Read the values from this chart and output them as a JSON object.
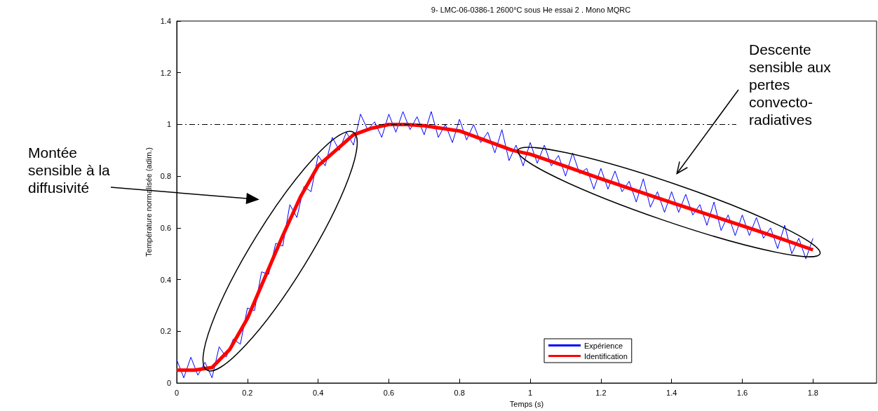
{
  "chart_data": {
    "type": "line",
    "title": "9- LMC-06-0386-1 2600°C sous He essai 2 . Mono MQRC",
    "xlabel": "Temps (s)",
    "ylabel": "Température normalisée (adim.)",
    "xlim": [
      0,
      1.98
    ],
    "xticks": [
      0,
      0.2,
      0.4,
      0.6,
      0.8,
      1,
      1.2,
      1.4,
      1.6,
      1.8
    ],
    "ylim": [
      0,
      1.4
    ],
    "yticks": [
      0,
      0.2,
      0.4,
      0.6,
      0.8,
      1,
      1.2,
      1.4
    ],
    "grid": false,
    "legend": "bottom right",
    "marker": "none",
    "ref_lines": [
      {
        "axis": "y",
        "value": 1,
        "color": "#000000",
        "line_style": "dashed"
      }
    ],
    "annotations": [
      "Montée sensible à la diffusivité",
      "Descente sensible aux pertes convecto-radiatives"
    ],
    "series": [
      {
        "name": "Expérience",
        "color": "#0000ff",
        "x": [
          0,
          0.02,
          0.04,
          0.06,
          0.08,
          0.1,
          0.12,
          0.14,
          0.16,
          0.18,
          0.2,
          0.22,
          0.24,
          0.26,
          0.28,
          0.3,
          0.32,
          0.34,
          0.36,
          0.38,
          0.4,
          0.42,
          0.44,
          0.46,
          0.48,
          0.5,
          0.52,
          0.54,
          0.56,
          0.58,
          0.6,
          0.62,
          0.64,
          0.66,
          0.68,
          0.7,
          0.72,
          0.74,
          0.76,
          0.78,
          0.8,
          0.82,
          0.84,
          0.86,
          0.88,
          0.9,
          0.92,
          0.94,
          0.96,
          0.98,
          1,
          1.02,
          1.04,
          1.06,
          1.08,
          1.1,
          1.12,
          1.14,
          1.16,
          1.18,
          1.2,
          1.22,
          1.24,
          1.26,
          1.28,
          1.3,
          1.32,
          1.34,
          1.36,
          1.38,
          1.4,
          1.42,
          1.44,
          1.46,
          1.48,
          1.5,
          1.52,
          1.54,
          1.56,
          1.58,
          1.6,
          1.62,
          1.64,
          1.66,
          1.68,
          1.7,
          1.72,
          1.74,
          1.76,
          1.78,
          1.8
        ],
        "values": [
          0.09,
          0.02,
          0.1,
          0.03,
          0.08,
          0.02,
          0.14,
          0.1,
          0.17,
          0.15,
          0.29,
          0.28,
          0.43,
          0.42,
          0.54,
          0.53,
          0.69,
          0.64,
          0.76,
          0.74,
          0.88,
          0.84,
          0.95,
          0.9,
          0.97,
          0.92,
          1.04,
          0.98,
          1.01,
          0.95,
          1.04,
          0.97,
          1.05,
          0.98,
          1.03,
          0.96,
          1.05,
          0.95,
          1.0,
          0.93,
          1.02,
          0.94,
          1.0,
          0.93,
          0.97,
          0.89,
          0.98,
          0.86,
          0.92,
          0.84,
          0.93,
          0.85,
          0.92,
          0.84,
          0.88,
          0.8,
          0.89,
          0.81,
          0.83,
          0.75,
          0.83,
          0.75,
          0.82,
          0.74,
          0.78,
          0.7,
          0.79,
          0.68,
          0.74,
          0.66,
          0.74,
          0.66,
          0.73,
          0.65,
          0.69,
          0.61,
          0.7,
          0.59,
          0.65,
          0.57,
          0.65,
          0.57,
          0.64,
          0.56,
          0.6,
          0.52,
          0.61,
          0.5,
          0.56,
          0.48,
          0.56
        ]
      },
      {
        "name": "Identification",
        "color": "#ff0000",
        "x": [
          0,
          0.05,
          0.1,
          0.15,
          0.2,
          0.25,
          0.3,
          0.35,
          0.4,
          0.45,
          0.5,
          0.55,
          0.6,
          0.65,
          0.7,
          0.75,
          0.8,
          0.85,
          0.9,
          0.95,
          1,
          1.1,
          1.2,
          1.3,
          1.4,
          1.5,
          1.6,
          1.7,
          1.8
        ],
        "values": [
          0.05,
          0.05,
          0.06,
          0.13,
          0.25,
          0.41,
          0.57,
          0.72,
          0.84,
          0.9,
          0.96,
          0.985,
          1.0,
          1.0,
          0.995,
          0.985,
          0.975,
          0.95,
          0.925,
          0.9,
          0.885,
          0.838,
          0.79,
          0.744,
          0.698,
          0.653,
          0.608,
          0.563,
          0.515
        ]
      }
    ]
  }
}
